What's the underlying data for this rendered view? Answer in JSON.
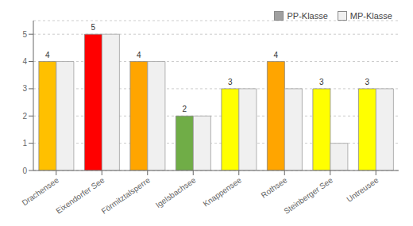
{
  "chart_data": {
    "type": "bar",
    "categories": [
      "Drachensee",
      "Eixendorfer See",
      "Förmitztalsperre",
      "Igelsbachsee",
      "Knappensee",
      "Rothsee",
      "Steinberger See",
      "Untreusee"
    ],
    "series": [
      {
        "name": "PP-Klasse",
        "color": "#A0A0A0",
        "colors": [
          "#FFC000",
          "#FF0000",
          "#FFA500",
          "#70AD47",
          "#FFFF00",
          "#FFA500",
          "#FFFF00",
          "#FFFF00"
        ],
        "values": [
          4,
          5,
          4,
          2,
          3,
          4,
          3,
          3
        ],
        "data_labels": true
      },
      {
        "name": "MP-Klasse",
        "color": "#F0F0F0",
        "values": [
          4,
          5,
          4,
          2,
          3,
          3,
          1,
          3
        ]
      }
    ],
    "ylim": [
      0,
      5.5
    ],
    "yticks": [
      0,
      1,
      2,
      3,
      4,
      5
    ],
    "grid": true,
    "legend": "upper right"
  }
}
